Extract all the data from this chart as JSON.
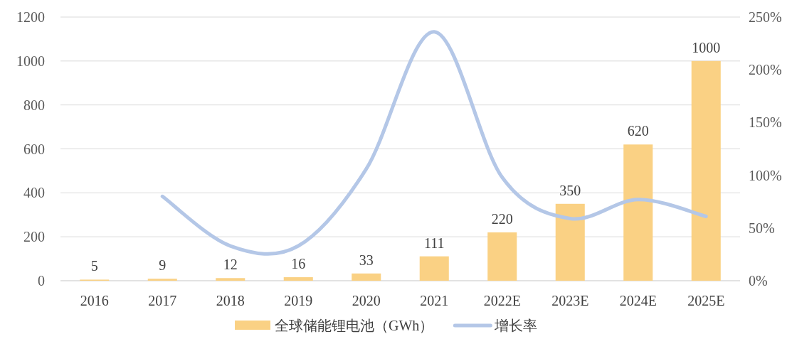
{
  "chart_data": {
    "type": "bar",
    "categories": [
      "2016",
      "2017",
      "2018",
      "2019",
      "2020",
      "2021",
      "2022E",
      "2023E",
      "2024E",
      "2025E"
    ],
    "series": [
      {
        "name": "全球储能锂电池（GWh）",
        "color": "#fad184",
        "values": [
          5,
          9,
          12,
          16,
          33,
          111,
          220,
          350,
          620,
          1000
        ],
        "value_labels": [
          "5",
          "9",
          "12",
          "16",
          "33",
          "111",
          "220",
          "350",
          "620",
          "1000"
        ]
      },
      {
        "name": "增长率",
        "type": "line",
        "axis": "y2",
        "color": "#b4c7e7",
        "values": [
          null,
          80,
          33,
          33,
          106,
          236,
          98,
          59,
          77,
          61
        ]
      }
    ],
    "ylim": [
      0,
      1200
    ],
    "yticks": [
      0,
      200,
      400,
      600,
      800,
      1000,
      1200
    ],
    "y2lim": [
      0,
      250
    ],
    "y2ticks": [
      {
        "value": 0,
        "label": "0%"
      },
      {
        "value": 50,
        "label": "50%"
      },
      {
        "value": 100,
        "label": "100%"
      },
      {
        "value": 150,
        "label": "150%"
      },
      {
        "value": 200,
        "label": "200%"
      },
      {
        "value": 250,
        "label": "250%"
      }
    ],
    "grid": "y",
    "legend": "bottom"
  }
}
